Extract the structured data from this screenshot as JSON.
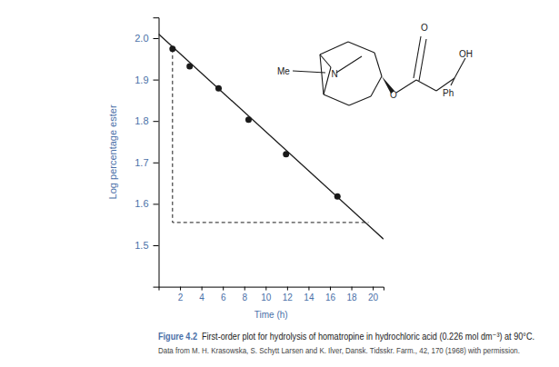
{
  "chart_data": {
    "type": "scatter",
    "title": "First-order plot for hydrolysis of homatropine in hydrochloric acid (0.226 mol dm⁻³) at 90°C.",
    "subtitle": "Data from M. H. Krasowska, S. Schytt Larsen and K. Ilver, Dansk. Tidsskr. Farm., 42, 170 (1968) with permission.",
    "x_label": "Time (h)",
    "y_label": "Log percentage ester",
    "annotations": [
      "Figure 4.2",
      "Me",
      "N",
      "O",
      "OH",
      "Ph",
      "O"
    ],
    "xlim": [
      0,
      21
    ],
    "ylim": [
      1.4,
      2.05
    ],
    "xticks": [
      2,
      4,
      6,
      8,
      10,
      12,
      14,
      16,
      18,
      20
    ],
    "yticks": [
      1.5,
      1.6,
      1.7,
      1.8,
      1.9,
      {
        "value": 2,
        "label": "2.0"
      }
    ],
    "series": [
      {
        "type": "scatter",
        "marker": "circle",
        "color": "#1a1a1a",
        "x": [
          1.3,
          2.9,
          5.6,
          8.4,
          11.9,
          16.7
        ],
        "values": [
          1.974,
          1.932,
          1.879,
          1.803,
          1.72,
          1.618
        ]
      },
      {
        "type": "line",
        "line_style": "solid",
        "color": "#1a1a1a",
        "x": [
          0,
          21
        ],
        "values": [
          2.01,
          1.515
        ]
      },
      {
        "type": "line",
        "line_style": "dashed",
        "color": "#1a1a1a",
        "x": [
          1.3,
          1.3,
          19.6
        ],
        "values": [
          1.974,
          1.555,
          1.555
        ]
      }
    ]
  }
}
